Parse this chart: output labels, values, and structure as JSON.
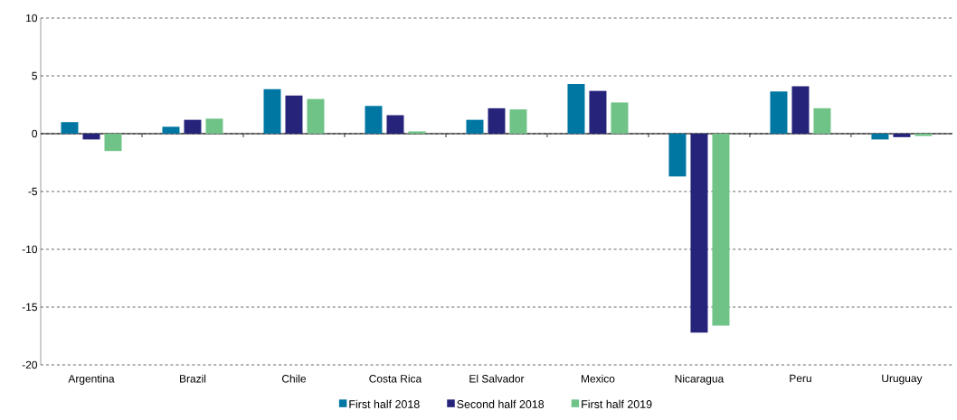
{
  "chart_data": {
    "type": "bar",
    "categories": [
      "Argentina",
      "Brazil",
      "Chile",
      "Costa Rica",
      "El Salvador",
      "Mexico",
      "Nicaragua",
      "Peru",
      "Uruguay"
    ],
    "series": [
      {
        "name": "First half 2018",
        "color": "#0077a3",
        "values": [
          1.0,
          0.6,
          3.85,
          2.4,
          1.2,
          4.3,
          -3.7,
          3.65,
          -0.5
        ]
      },
      {
        "name": "Second half 2018",
        "color": "#26237a",
        "values": [
          -0.5,
          1.2,
          3.3,
          1.6,
          2.2,
          3.7,
          -17.2,
          4.1,
          -0.3
        ]
      },
      {
        "name": "First half 2019",
        "color": "#6fc387",
        "values": [
          -1.5,
          1.3,
          3.0,
          0.2,
          2.1,
          2.7,
          -16.6,
          2.2,
          -0.2
        ]
      }
    ],
    "ylim": [
      -20,
      10
    ],
    "yticks": [
      -20,
      -15,
      -10,
      -5,
      0,
      5,
      10
    ],
    "grid": "y",
    "legend": "bottom"
  }
}
